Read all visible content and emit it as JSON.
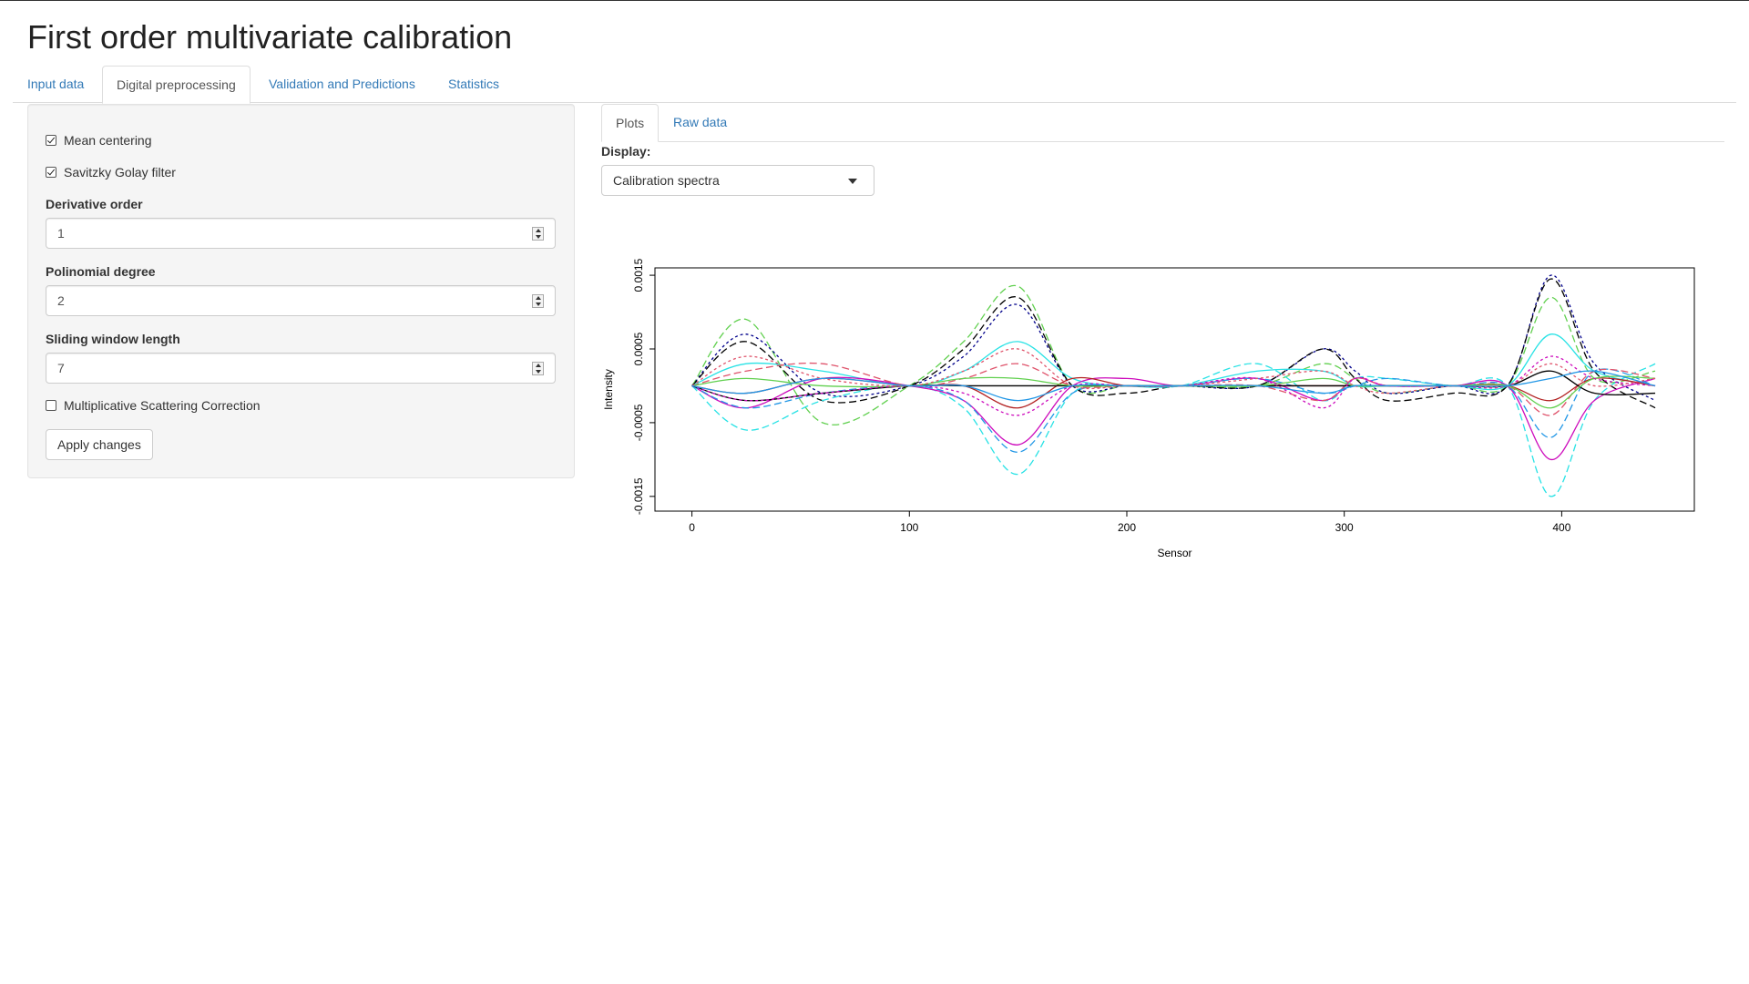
{
  "app": {
    "title": "First order multivariate calibration"
  },
  "main_tabs": [
    {
      "label": "Input data",
      "active": false
    },
    {
      "label": "Digital preprocessing",
      "active": true
    },
    {
      "label": "Validation and Predictions",
      "active": false
    },
    {
      "label": "Statistics",
      "active": false
    }
  ],
  "sidebar": {
    "mean_centering": {
      "label": "Mean centering",
      "checked": true
    },
    "savitzky_golay": {
      "label": "Savitzky Golay filter",
      "checked": true
    },
    "derivative_order": {
      "label": "Derivative order",
      "value": "1"
    },
    "polynomial_degree": {
      "label": "Polinomial degree",
      "value": "2"
    },
    "window_length": {
      "label": "Sliding window length",
      "value": "7"
    },
    "msc": {
      "label": "Multiplicative Scattering Correction",
      "checked": false
    },
    "apply_label": "Apply changes"
  },
  "sub_tabs": [
    {
      "label": "Plots",
      "active": true
    },
    {
      "label": "Raw data",
      "active": false
    }
  ],
  "display": {
    "label": "Display:",
    "selected": "Calibration spectra"
  },
  "colors": {
    "link": "#337ab7",
    "series_palette": [
      "#000000",
      "#df536b",
      "#61d04f",
      "#2297e6",
      "#28e2e5",
      "#cd0bbc",
      "#f5c710",
      "#9e9e9e",
      "#00008b",
      "#b22222",
      "#228b22"
    ]
  },
  "chart_data": {
    "type": "line",
    "title": "",
    "xlabel": "Sensor",
    "ylabel": "Intensity",
    "xlim": [
      -17,
      461
    ],
    "ylim": [
      -0.0017,
      0.0016
    ],
    "x_ticks": [
      0,
      100,
      200,
      300,
      400
    ],
    "x_tick_labels": [
      "0",
      "100",
      "200",
      "300",
      "400"
    ],
    "y_ticks": [
      -0.0015,
      -0.0005,
      0.0005,
      0.0015
    ],
    "y_tick_labels": [
      "-0.0015",
      "-0.0005",
      "0.0005",
      "0.0015"
    ],
    "grid": false,
    "legend": "none",
    "x": [
      0,
      25,
      60,
      100,
      125,
      150,
      175,
      200,
      225,
      260,
      290,
      305,
      320,
      350,
      375,
      395,
      415,
      443
    ],
    "series": [
      {
        "color": "#61d04f",
        "dash": "8,4",
        "values": [
          0,
          0.0009,
          -0.0005,
          0.0,
          0.0006,
          0.00135,
          0.0,
          0.0,
          0.0,
          0.0,
          0.0003,
          0.0001,
          -0.0001,
          0.0,
          0.0,
          0.0012,
          0.0001,
          0.0002
        ]
      },
      {
        "color": "#00008b",
        "dash": "3,3",
        "values": [
          0,
          0.0007,
          -0.0001,
          0.0,
          0.0004,
          0.0011,
          0.0,
          0.0,
          0.0,
          0.0,
          0.0005,
          0.0002,
          -0.0001,
          0.0,
          0.0,
          0.0015,
          0.0003,
          -0.0002
        ]
      },
      {
        "color": "#000000",
        "dash": "8,4",
        "values": [
          0,
          0.0006,
          -0.0002,
          0.0,
          0.0005,
          0.0012,
          0.0,
          -0.0001,
          0.0,
          0.0,
          0.0005,
          0.0001,
          -0.0002,
          -0.0001,
          0.0,
          0.00145,
          0.0002,
          -0.0003
        ]
      },
      {
        "color": "#28e2e5",
        "dash": "",
        "values": [
          0,
          0.0003,
          0.0002,
          0.0,
          0.0002,
          0.0006,
          0.0001,
          0.0,
          0.0,
          0.0002,
          0.0002,
          0.0,
          0.0,
          0.0,
          0.0,
          0.0007,
          0.0002,
          0.0
        ]
      },
      {
        "color": "#28e2e5",
        "dash": "8,4",
        "values": [
          0,
          -0.0006,
          -0.0002,
          0.0,
          -0.0003,
          -0.0012,
          -0.0001,
          0.0,
          0.0,
          0.0003,
          -0.0002,
          0.0001,
          0.0001,
          0.0,
          0.0,
          -0.0015,
          -0.0002,
          0.0003
        ]
      },
      {
        "color": "#cd0bbc",
        "dash": "",
        "values": [
          0,
          -0.0003,
          0.0001,
          0.0,
          -0.0002,
          -0.0008,
          0.0,
          0.0001,
          0.0,
          0.0001,
          -0.0002,
          0.0001,
          0.0,
          0.0,
          0.0,
          -0.001,
          -0.0002,
          0.0001
        ]
      },
      {
        "color": "#2297e6",
        "dash": "8,4",
        "values": [
          0,
          -0.0003,
          -0.0001,
          0.0,
          -0.0002,
          -0.0009,
          -0.0001,
          0.0,
          0.0,
          0.0001,
          -0.0001,
          0.0,
          0.0001,
          0.0,
          0.0,
          -0.0007,
          0.0002,
          0.0
        ]
      },
      {
        "color": "#df536b",
        "dash": "8,4",
        "values": [
          0,
          0.0002,
          0.0003,
          0.0,
          0.0001,
          0.0003,
          0.0,
          0.0,
          0.0,
          0.0,
          -0.0002,
          0.0001,
          0.0,
          0.0,
          0.0,
          -0.0004,
          0.0002,
          0.0001
        ]
      },
      {
        "color": "#b22222",
        "dash": "",
        "values": [
          0,
          -0.0001,
          0.0001,
          0.0,
          0.0,
          -0.0003,
          0.0001,
          0.0,
          0.0,
          0.0,
          0.0,
          0.0,
          0.0,
          0.0,
          0.0,
          -0.0002,
          0.0001,
          0.0
        ]
      },
      {
        "color": "#000000",
        "dash": "",
        "values": [
          0,
          -0.0002,
          -0.0001,
          0.0,
          0.0,
          0.0,
          0.0,
          0.0,
          0.0,
          0.0,
          0.0,
          0.0,
          0.0,
          0.0,
          0.0,
          0.0002,
          -0.0001,
          -0.0001
        ]
      },
      {
        "color": "#61d04f",
        "dash": "",
        "values": [
          0,
          0.0001,
          0.0,
          0.0,
          0.0001,
          0.0001,
          0.0,
          0.0,
          0.0,
          0.0,
          0.0001,
          0.0,
          0.0,
          0.0,
          0.0,
          -0.0003,
          0.0001,
          0.0001
        ]
      },
      {
        "color": "#cd0bbc",
        "dash": "3,3",
        "values": [
          0,
          -0.0002,
          -0.0001,
          0.0,
          -0.0001,
          -0.0004,
          0.0,
          0.0,
          0.0,
          0.0001,
          -0.0003,
          0.0001,
          0.0,
          0.0,
          0.0,
          0.0004,
          0.0001,
          0.0
        ]
      },
      {
        "color": "#df536b",
        "dash": "3,3",
        "values": [
          0,
          0.0004,
          0.0001,
          0.0,
          0.0002,
          0.0005,
          0.0,
          0.0,
          0.0,
          0.0001,
          0.0002,
          0.0,
          -0.0001,
          0.0,
          0.0,
          0.0003,
          0.0,
          0.0001
        ]
      },
      {
        "color": "#2297e6",
        "dash": "",
        "values": [
          0,
          -0.0001,
          0.0001,
          0.0,
          0.0,
          -0.0002,
          0.0,
          0.0,
          0.0,
          0.0,
          -0.0001,
          0.0,
          0.0,
          0.0,
          0.0,
          0.0001,
          0.0002,
          0.0
        ]
      }
    ]
  }
}
